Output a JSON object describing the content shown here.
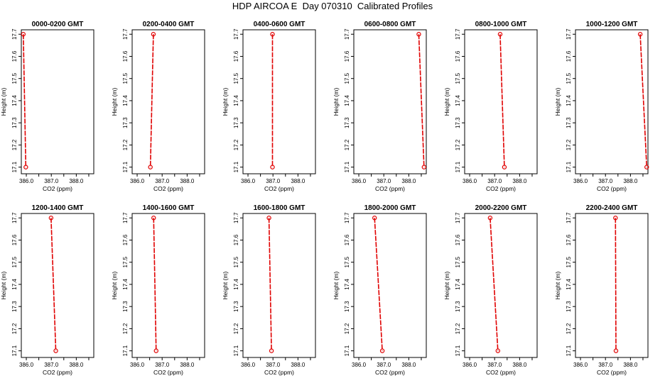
{
  "title": "HDP AIRCOA E  Day 070310  Calibrated Profiles",
  "colors": {
    "line": "#e00000",
    "axis": "#000000"
  },
  "chart_data": [
    {
      "type": "line",
      "title": "0000-0200 GMT",
      "xlabel": "CO2 (ppm)",
      "ylabel": "Height (m)",
      "xlim": [
        385.8,
        388.7
      ],
      "ylim": [
        17.07,
        17.72
      ],
      "xticks": [
        "386.0",
        "387.0",
        "388.0"
      ],
      "yticks": [
        "17.1",
        "17.2",
        "17.3",
        "17.4",
        "17.5",
        "17.6",
        "17.7"
      ],
      "series": [
        {
          "x": [
            385.88,
            385.98
          ],
          "y": [
            17.7,
            17.1
          ]
        }
      ]
    },
    {
      "type": "line",
      "title": "0200-0400 GMT",
      "xlabel": "CO2 (ppm)",
      "ylabel": "Height (m)",
      "xlim": [
        385.8,
        388.7
      ],
      "ylim": [
        17.07,
        17.72
      ],
      "xticks": [
        "386.0",
        "387.0",
        "388.0"
      ],
      "yticks": [
        "17.1",
        "17.2",
        "17.3",
        "17.4",
        "17.5",
        "17.6",
        "17.7"
      ],
      "series": [
        {
          "x": [
            386.65,
            386.53
          ],
          "y": [
            17.7,
            17.1
          ]
        }
      ]
    },
    {
      "type": "line",
      "title": "0400-0600 GMT",
      "xlabel": "CO2 (ppm)",
      "ylabel": "Height (m)",
      "xlim": [
        385.8,
        388.7
      ],
      "ylim": [
        17.07,
        17.72
      ],
      "xticks": [
        "386.0",
        "387.0",
        "388.0"
      ],
      "yticks": [
        "17.1",
        "17.2",
        "17.3",
        "17.4",
        "17.5",
        "17.6",
        "17.7"
      ],
      "series": [
        {
          "x": [
            386.98,
            386.98
          ],
          "y": [
            17.7,
            17.1
          ]
        }
      ]
    },
    {
      "type": "line",
      "title": "0600-0800 GMT",
      "xlabel": "CO2 (ppm)",
      "ylabel": "Height (m)",
      "xlim": [
        385.8,
        388.7
      ],
      "ylim": [
        17.07,
        17.72
      ],
      "xticks": [
        "386.0",
        "387.0",
        "388.0"
      ],
      "yticks": [
        "17.1",
        "17.2",
        "17.3",
        "17.4",
        "17.5",
        "17.6",
        "17.7"
      ],
      "series": [
        {
          "x": [
            388.4,
            388.61
          ],
          "y": [
            17.7,
            17.1
          ]
        }
      ]
    },
    {
      "type": "line",
      "title": "0800-1000 GMT",
      "xlabel": "CO2 (ppm)",
      "ylabel": "Height (m)",
      "xlim": [
        385.8,
        388.7
      ],
      "ylim": [
        17.07,
        17.72
      ],
      "xticks": [
        "386.0",
        "387.0",
        "388.0"
      ],
      "yticks": [
        "17.1",
        "17.2",
        "17.3",
        "17.4",
        "17.5",
        "17.6",
        "17.7"
      ],
      "series": [
        {
          "x": [
            387.22,
            387.39
          ],
          "y": [
            17.7,
            17.1
          ]
        }
      ]
    },
    {
      "type": "line",
      "title": "1000-1200 GMT",
      "xlabel": "CO2 (ppm)",
      "ylabel": "Height (m)",
      "xlim": [
        385.8,
        388.7
      ],
      "ylim": [
        17.07,
        17.72
      ],
      "xticks": [
        "386.0",
        "387.0",
        "388.0"
      ],
      "yticks": [
        "17.1",
        "17.2",
        "17.3",
        "17.4",
        "17.5",
        "17.6",
        "17.7"
      ],
      "series": [
        {
          "x": [
            388.39,
            388.65
          ],
          "y": [
            17.7,
            17.1
          ]
        }
      ]
    },
    {
      "type": "line",
      "title": "1200-1400 GMT",
      "xlabel": "CO2 (ppm)",
      "ylabel": "Height (m)",
      "xlim": [
        385.8,
        388.7
      ],
      "ylim": [
        17.07,
        17.72
      ],
      "xticks": [
        "386.0",
        "387.0",
        "388.0"
      ],
      "yticks": [
        "17.1",
        "17.2",
        "17.3",
        "17.4",
        "17.5",
        "17.6",
        "17.7"
      ],
      "series": [
        {
          "x": [
            386.99,
            387.18
          ],
          "y": [
            17.7,
            17.1
          ]
        }
      ]
    },
    {
      "type": "line",
      "title": "1400-1600 GMT",
      "xlabel": "CO2 (ppm)",
      "ylabel": "Height (m)",
      "xlim": [
        385.8,
        388.7
      ],
      "ylim": [
        17.07,
        17.72
      ],
      "xticks": [
        "386.0",
        "387.0",
        "388.0"
      ],
      "yticks": [
        "17.1",
        "17.2",
        "17.3",
        "17.4",
        "17.5",
        "17.6",
        "17.7"
      ],
      "series": [
        {
          "x": [
            386.66,
            386.76
          ],
          "y": [
            17.7,
            17.1
          ]
        }
      ]
    },
    {
      "type": "line",
      "title": "1600-1800 GMT",
      "xlabel": "CO2 (ppm)",
      "ylabel": "Height (m)",
      "xlim": [
        385.8,
        388.7
      ],
      "ylim": [
        17.07,
        17.72
      ],
      "xticks": [
        "386.0",
        "387.0",
        "388.0"
      ],
      "yticks": [
        "17.1",
        "17.2",
        "17.3",
        "17.4",
        "17.5",
        "17.6",
        "17.7"
      ],
      "series": [
        {
          "x": [
            386.84,
            386.94
          ],
          "y": [
            17.7,
            17.1
          ]
        }
      ]
    },
    {
      "type": "line",
      "title": "1800-2000 GMT",
      "xlabel": "CO2 (ppm)",
      "ylabel": "Height (m)",
      "xlim": [
        385.8,
        388.7
      ],
      "ylim": [
        17.07,
        17.72
      ],
      "xticks": [
        "386.0",
        "387.0",
        "388.0"
      ],
      "yticks": [
        "17.1",
        "17.2",
        "17.3",
        "17.4",
        "17.5",
        "17.6",
        "17.7"
      ],
      "series": [
        {
          "x": [
            386.63,
            386.94
          ],
          "y": [
            17.7,
            17.1
          ]
        }
      ]
    },
    {
      "type": "line",
      "title": "2000-2200 GMT",
      "xlabel": "CO2 (ppm)",
      "ylabel": "Height (m)",
      "xlim": [
        385.8,
        388.7
      ],
      "ylim": [
        17.07,
        17.72
      ],
      "xticks": [
        "386.0",
        "387.0",
        "388.0"
      ],
      "yticks": [
        "17.1",
        "17.2",
        "17.3",
        "17.4",
        "17.5",
        "17.6",
        "17.7"
      ],
      "series": [
        {
          "x": [
            386.82,
            387.13
          ],
          "y": [
            17.7,
            17.1
          ]
        }
      ]
    },
    {
      "type": "line",
      "title": "2200-2400 GMT",
      "xlabel": "CO2 (ppm)",
      "ylabel": "Height (m)",
      "xlim": [
        385.8,
        388.7
      ],
      "ylim": [
        17.07,
        17.72
      ],
      "xticks": [
        "386.0",
        "387.0",
        "388.0"
      ],
      "yticks": [
        "17.1",
        "17.2",
        "17.3",
        "17.4",
        "17.5",
        "17.6",
        "17.7"
      ],
      "series": [
        {
          "x": [
            387.4,
            387.42
          ],
          "y": [
            17.7,
            17.1
          ]
        }
      ]
    }
  ]
}
